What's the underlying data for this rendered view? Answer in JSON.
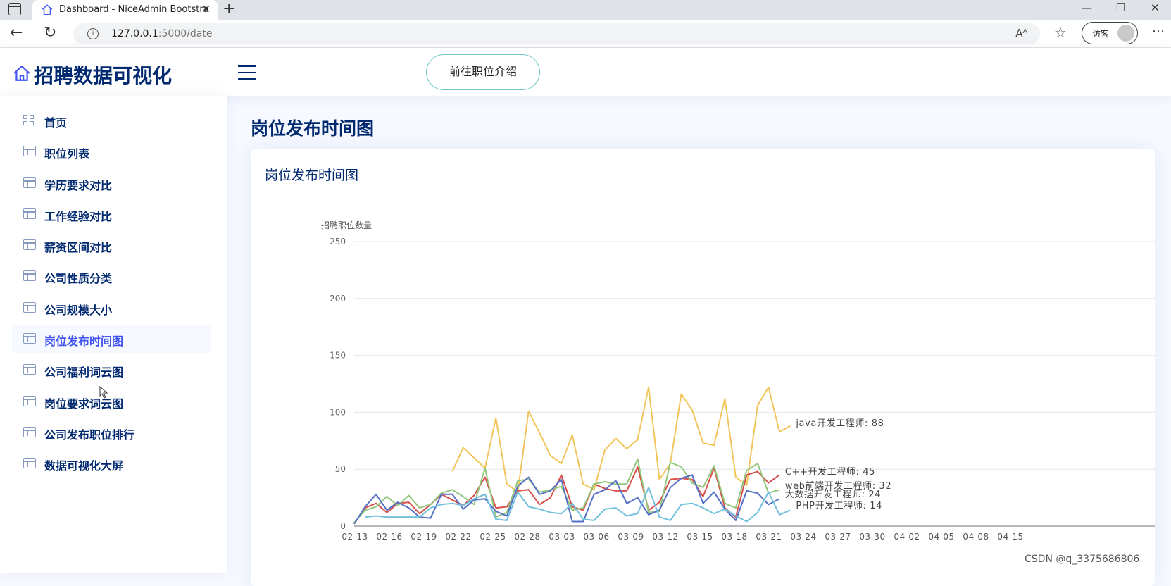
{
  "browser": {
    "tab_title": "Dashboard - NiceAdmin Bootstra",
    "url_host": "127.0.0.1",
    "url_rest": ":5000/date",
    "profile_label": "访客",
    "read_aloud": "Aᴬ"
  },
  "header": {
    "logo_text": "招聘数据可视化",
    "goto_button": "前往职位介绍"
  },
  "sidebar": {
    "items": [
      {
        "label": "首页",
        "icon": "grid-icon"
      },
      {
        "label": "职位列表",
        "icon": "list-icon"
      },
      {
        "label": "学历要求对比",
        "icon": "layout-icon"
      },
      {
        "label": "工作经验对比",
        "icon": "layout-icon"
      },
      {
        "label": "薪资区间对比",
        "icon": "layout-icon"
      },
      {
        "label": "公司性质分类",
        "icon": "layout-icon"
      },
      {
        "label": "公司规模大小",
        "icon": "layout-icon"
      },
      {
        "label": "岗位发布时间图",
        "icon": "layout-icon",
        "active": true
      },
      {
        "label": "公司福利词云图",
        "icon": "layout-icon"
      },
      {
        "label": "岗位要求词云图",
        "icon": "layout-icon"
      },
      {
        "label": "公司发布职位排行",
        "icon": "layout-icon"
      },
      {
        "label": "数据可视化大屏",
        "icon": "layout-icon"
      }
    ]
  },
  "main": {
    "page_title": "岗位发布时间图",
    "card_title": "岗位发布时间图"
  },
  "watermark": "CSDN @q_3375686806",
  "chart_data": {
    "type": "line",
    "ylabel": "招聘职位数量",
    "ylim": [
      0,
      250
    ],
    "yticks": [
      0,
      50,
      100,
      150,
      200,
      250
    ],
    "grid": true,
    "x_tick_labels": [
      "02-13",
      "02-16",
      "02-19",
      "02-22",
      "02-25",
      "02-28",
      "03-03",
      "03-06",
      "03-09",
      "03-12",
      "03-15",
      "03-18",
      "03-21",
      "03-24",
      "03-27",
      "03-30",
      "04-02",
      "04-05",
      "04-08",
      "04-15"
    ],
    "x_range_days": 62,
    "series": [
      {
        "name": "java开发工程师",
        "end_label": "java开发工程师: 88",
        "color": "#f2c55c",
        "start_day": 9,
        "values": [
          48,
          69,
          60,
          51,
          95,
          37,
          30,
          101,
          82,
          62,
          55,
          80,
          37,
          32,
          67,
          77,
          68,
          76,
          122,
          41,
          55,
          116,
          102,
          73,
          71,
          112,
          43,
          36,
          106,
          122,
          83,
          88
        ]
      },
      {
        "name": "C++开发工程师",
        "end_label": "C++开发工程师: 45",
        "color": "#d7504b",
        "start_day": 0,
        "values": [
          2,
          16,
          20,
          12,
          20,
          21,
          11,
          19,
          28,
          23,
          18,
          27,
          43,
          16,
          17,
          31,
          32,
          19,
          25,
          45,
          17,
          14,
          37,
          33,
          31,
          31,
          52,
          14,
          21,
          41,
          42,
          41,
          26,
          51,
          16,
          8,
          45,
          48,
          38,
          45
        ]
      },
      {
        "name": "web前端开发工程师",
        "end_label": "web前端开发工程师: 32",
        "color": "#91c77a",
        "start_day": 0,
        "values": [
          3,
          14,
          17,
          26,
          18,
          27,
          16,
          19,
          29,
          32,
          26,
          19,
          51,
          8,
          12,
          40,
          41,
          30,
          32,
          35,
          14,
          16,
          37,
          39,
          37,
          37,
          59,
          12,
          13,
          56,
          52,
          38,
          34,
          53,
          20,
          16,
          49,
          55,
          29,
          32
        ]
      },
      {
        "name": "大数据开发工程师",
        "end_label": "大数据开发工程师: 24",
        "color": "#5570c6",
        "start_day": 0,
        "values": [
          2,
          17,
          28,
          14,
          21,
          16,
          8,
          7,
          28,
          28,
          15,
          23,
          24,
          13,
          9,
          35,
          43,
          28,
          31,
          41,
          4,
          4,
          28,
          32,
          40,
          20,
          25,
          10,
          14,
          34,
          42,
          45,
          20,
          30,
          15,
          5,
          31,
          29,
          19,
          24
        ]
      },
      {
        "name": "PHP开发工程师",
        "end_label": "PHP开发工程师: 14",
        "color": "#73c0de",
        "start_day": 1,
        "values": [
          8,
          9,
          8,
          8,
          8,
          8,
          16,
          19,
          20,
          18,
          24,
          28,
          6,
          5,
          30,
          17,
          15,
          12,
          11,
          20,
          6,
          5,
          15,
          16,
          9,
          11,
          34,
          8,
          5,
          19,
          20,
          16,
          11,
          15,
          9,
          4,
          12,
          30,
          10,
          14
        ]
      }
    ]
  }
}
